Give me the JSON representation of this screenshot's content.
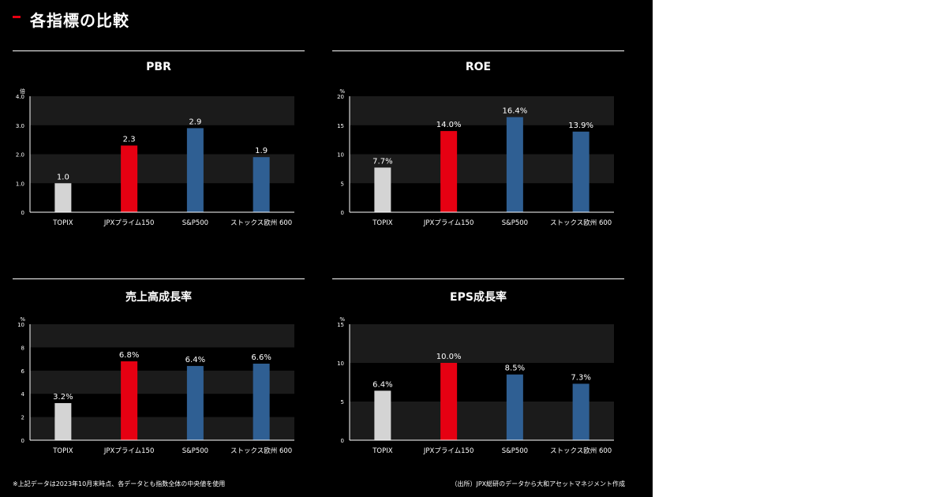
{
  "title": "各指標の比較",
  "footnote": "※上記データは2023年10月末時点、各データとも指数全体の中央値を使用",
  "source": "（出所）JPX総研のデータから大和アセットマネジメント作成",
  "colors": {
    "topix": "#d4d4d4",
    "jpx": "#e60012",
    "other": "#2f5f93",
    "band": "#1b1b1b"
  },
  "chart_data": [
    {
      "type": "bar",
      "title": "PBR",
      "unit": "倍",
      "categories": [
        "TOPIX",
        "JPXプライム150",
        "S&P500",
        "ストックス欧州 600"
      ],
      "values": [
        1.0,
        2.3,
        2.9,
        1.9
      ],
      "labels": [
        "1.0",
        "2.3",
        "2.9",
        "1.9"
      ],
      "ylim": [
        0,
        4
      ],
      "yticks": [
        "0",
        "1.0",
        "2.0",
        "3.0",
        "4.0"
      ]
    },
    {
      "type": "bar",
      "title": "ROE",
      "unit": "%",
      "categories": [
        "TOPIX",
        "JPXプライム150",
        "S&P500",
        "ストックス欧州 600"
      ],
      "values": [
        7.7,
        14.0,
        16.4,
        13.9
      ],
      "labels": [
        "7.7%",
        "14.0%",
        "16.4%",
        "13.9%"
      ],
      "ylim": [
        0,
        20
      ],
      "yticks": [
        "0",
        "5",
        "10",
        "15",
        "20"
      ]
    },
    {
      "type": "bar",
      "title": "売上高成長率",
      "unit": "%",
      "categories": [
        "TOPIX",
        "JPXプライム150",
        "S&P500",
        "ストックス欧州 600"
      ],
      "values": [
        3.2,
        6.8,
        6.4,
        6.6
      ],
      "labels": [
        "3.2%",
        "6.8%",
        "6.4%",
        "6.6%"
      ],
      "ylim": [
        0,
        10
      ],
      "yticks": [
        "0",
        "2",
        "4",
        "6",
        "8",
        "10"
      ]
    },
    {
      "type": "bar",
      "title": "EPS成長率",
      "unit": "%",
      "categories": [
        "TOPIX",
        "JPXプライム150",
        "S&P500",
        "ストックス欧州 600"
      ],
      "values": [
        6.4,
        10.0,
        8.5,
        7.3
      ],
      "labels": [
        "6.4%",
        "10.0%",
        "8.5%",
        "7.3%"
      ],
      "ylim": [
        0,
        15
      ],
      "yticks": [
        "0",
        "5",
        "10",
        "15"
      ]
    }
  ]
}
